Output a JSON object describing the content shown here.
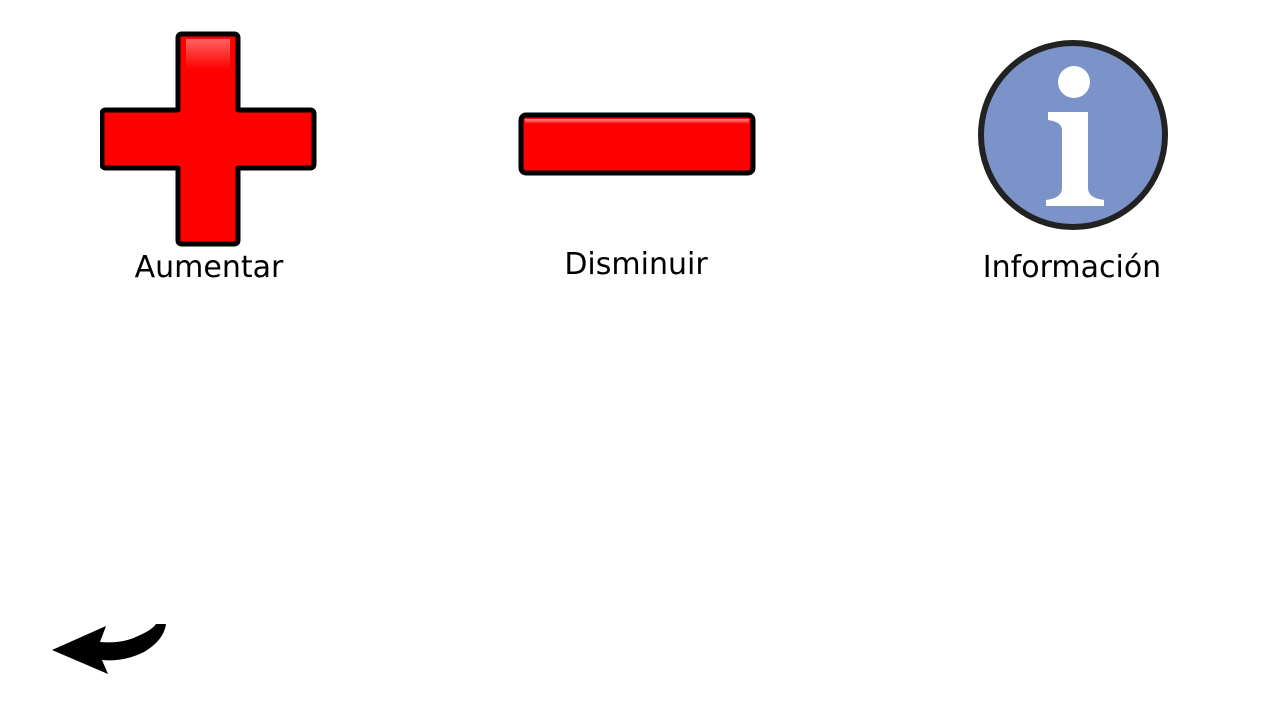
{
  "buttons": [
    {
      "id": "increase",
      "label": "Aumentar",
      "icon": "plus-icon",
      "color": "#ff0000"
    },
    {
      "id": "decrease",
      "label": "Disminuir",
      "icon": "minus-icon",
      "color": "#ff0000"
    },
    {
      "id": "info",
      "label": "Información",
      "icon": "info-icon",
      "color": "#7b93c9"
    }
  ],
  "back": {
    "icon": "back-arrow-icon"
  },
  "colors": {
    "background": "#ffffff",
    "action_red": "#ff0000",
    "info_blue": "#7b93c9",
    "outline": "#000000"
  }
}
